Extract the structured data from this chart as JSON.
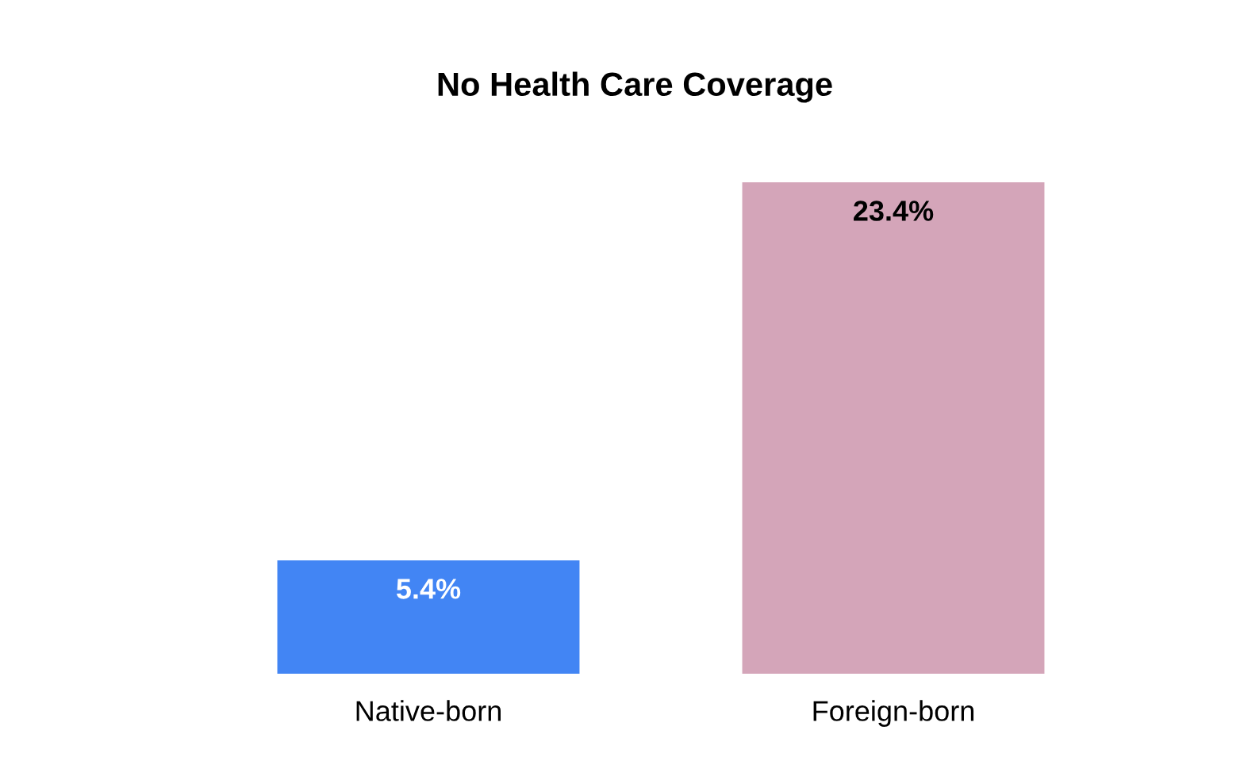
{
  "chart_data": {
    "type": "bar",
    "title": "No Health Care Coverage",
    "categories": [
      "Native-born",
      "Foreign-born"
    ],
    "values": [
      5.4,
      23.4
    ],
    "colors": [
      "#4285f4",
      "#d4a5b9"
    ],
    "value_labels": [
      "5.4%",
      "23.4%"
    ]
  }
}
